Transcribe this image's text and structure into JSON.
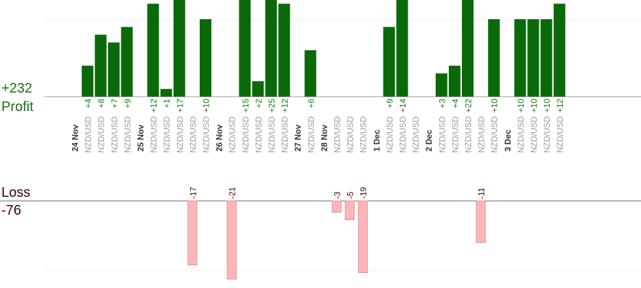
{
  "summary": {
    "profit_total": "+232",
    "profit_label": "Profit",
    "loss_label": "Loss",
    "loss_total": "-76"
  },
  "colors": {
    "profit_bar": "#0a6a0a",
    "profit_text": "#1a6e1a",
    "loss_bar": "#ffb6b9",
    "loss_bar_border": "#e88a8e",
    "loss_text": "#3a0000",
    "axis": "#999999",
    "grid": "#ececec",
    "pair_text": "#999999",
    "day_text": "#333333"
  },
  "chart_data": {
    "type": "bar",
    "title": "",
    "ylim": [
      -21,
      21
    ],
    "days": [
      {
        "label": "24 Nov",
        "trades": [
          {
            "pair": "NZD/USD",
            "value": 4
          },
          {
            "pair": "NZD/USD",
            "value": 8
          },
          {
            "pair": "NZD/USD",
            "value": 7
          },
          {
            "pair": "NZD/USD",
            "value": 9
          }
        ]
      },
      {
        "label": "25 Nov",
        "trades": [
          {
            "pair": "NZD/USD",
            "value": 12
          },
          {
            "pair": "NZD/USD",
            "value": 1
          },
          {
            "pair": "NZD/USD",
            "value": 17
          },
          {
            "pair": "NZD/USD",
            "value": -17
          },
          {
            "pair": "NZD/USD",
            "value": 10
          }
        ]
      },
      {
        "label": "26 Nov",
        "trades": [
          {
            "pair": "NZD/USD",
            "value": -21
          },
          {
            "pair": "NZD/USD",
            "value": 15
          },
          {
            "pair": "NZD/USD",
            "value": 2
          },
          {
            "pair": "NZD/USD",
            "value": 25
          },
          {
            "pair": "NZD/USD",
            "value": 12
          }
        ]
      },
      {
        "label": "27 Nov",
        "trades": [
          {
            "pair": "NZD/USD",
            "value": 6
          }
        ]
      },
      {
        "label": "28 Nov",
        "trades": [
          {
            "pair": "NZD/USD",
            "value": -3
          },
          {
            "pair": "NZD/USD",
            "value": -5
          },
          {
            "pair": "NZD/USD",
            "value": -19
          }
        ]
      },
      {
        "label": "1 Dec",
        "trades": [
          {
            "pair": "NZD/USD",
            "value": 9
          },
          {
            "pair": "NZD/USD",
            "value": 14
          },
          {
            "pair": "NZD/USD",
            "value": null
          }
        ]
      },
      {
        "label": "2 Dec",
        "trades": [
          {
            "pair": "NZD/USD",
            "value": 3
          },
          {
            "pair": "NZD/USD",
            "value": 4
          },
          {
            "pair": "NZD/USD",
            "value": 22
          },
          {
            "pair": "NZD/USD",
            "value": -11
          },
          {
            "pair": "NZD/USD",
            "value": 10
          }
        ]
      },
      {
        "label": "3 Dec",
        "trades": [
          {
            "pair": "NZD/USD",
            "value": 10
          },
          {
            "pair": "NZD/USD",
            "value": 10
          },
          {
            "pair": "NZD/USD",
            "value": 10
          },
          {
            "pair": "NZD/USD",
            "value": 12
          }
        ]
      }
    ]
  }
}
